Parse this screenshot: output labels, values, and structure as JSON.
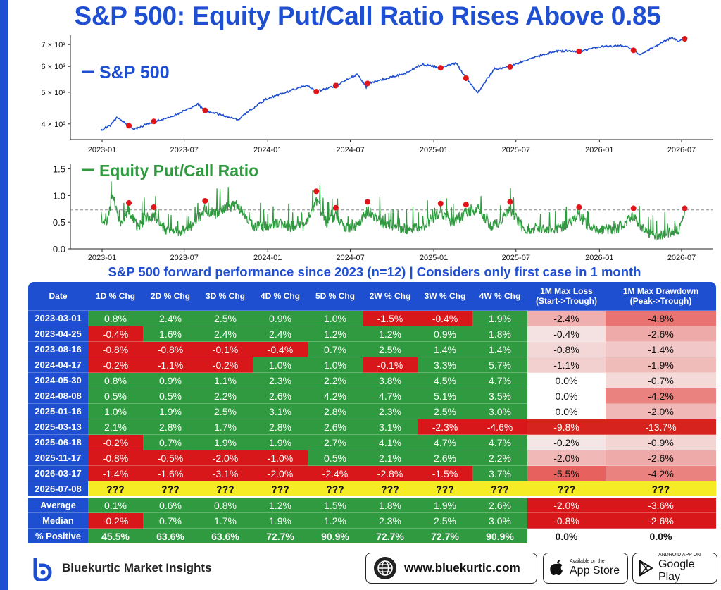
{
  "title": "S&P 500: Equity Put/Call Ratio Rises Above 0.85",
  "colors": {
    "brand": "#1f4fd1",
    "sp500_line": "#1f4fd1",
    "pcr_line": "#2f9a3f",
    "marker": "#e0161b",
    "positive": "#2f9a3f",
    "negative": "#d8171a",
    "current": "#f5ec26"
  },
  "chart_data": [
    {
      "type": "line",
      "series": [
        {
          "name": "S&P 500"
        }
      ],
      "x_tick_labels": [
        "2023-01",
        "2023-07",
        "2024-01",
        "2024-07",
        "2025-01",
        "2025-07",
        "2026-01",
        "2026-07"
      ],
      "y_tick_labels": [
        "4 × 10³",
        "5 × 10³",
        "6 × 10³",
        "7 × 10³"
      ],
      "y_scale": "log",
      "ylim": [
        3600,
        7400
      ],
      "line": [
        [
          "2022-12-30",
          3840
        ],
        [
          "2023-01-20",
          3970
        ],
        [
          "2023-02-02",
          4180
        ],
        [
          "2023-03-01",
          3950
        ],
        [
          "2023-03-13",
          3855
        ],
        [
          "2023-04-25",
          4070
        ],
        [
          "2023-05-31",
          4180
        ],
        [
          "2023-07-31",
          4590
        ],
        [
          "2023-08-16",
          4400
        ],
        [
          "2023-10-27",
          4120
        ],
        [
          "2023-12-29",
          4770
        ],
        [
          "2024-03-28",
          5250
        ],
        [
          "2024-04-17",
          5020
        ],
        [
          "2024-05-30",
          5240
        ],
        [
          "2024-07-16",
          5670
        ],
        [
          "2024-08-05",
          5190
        ],
        [
          "2024-08-08",
          5320
        ],
        [
          "2024-10-31",
          5705
        ],
        [
          "2024-12-06",
          6090
        ],
        [
          "2025-01-16",
          5940
        ],
        [
          "2025-02-19",
          6140
        ],
        [
          "2025-03-13",
          5520
        ],
        [
          "2025-04-08",
          4980
        ],
        [
          "2025-05-15",
          5900
        ],
        [
          "2025-06-18",
          5980
        ],
        [
          "2025-07-31",
          6340
        ],
        [
          "2025-09-30",
          6690
        ],
        [
          "2025-11-17",
          6670
        ],
        [
          "2025-12-31",
          6900
        ],
        [
          "2026-02-25",
          6950
        ],
        [
          "2026-03-17",
          6720
        ],
        [
          "2026-03-31",
          6500
        ],
        [
          "2026-05-15",
          7050
        ],
        [
          "2026-06-10",
          7350
        ],
        [
          "2026-06-24",
          7180
        ],
        [
          "2026-07-08",
          7290
        ]
      ],
      "markers": [
        [
          "2023-03-01",
          3950
        ],
        [
          "2023-04-25",
          4070
        ],
        [
          "2023-08-16",
          4400
        ],
        [
          "2024-04-17",
          5020
        ],
        [
          "2024-05-30",
          5240
        ],
        [
          "2024-08-08",
          5320
        ],
        [
          "2025-01-16",
          5940
        ],
        [
          "2025-03-13",
          5520
        ],
        [
          "2025-06-18",
          5980
        ],
        [
          "2025-11-17",
          6670
        ],
        [
          "2026-03-17",
          6720
        ],
        [
          "2026-07-08",
          7290
        ]
      ]
    },
    {
      "type": "line",
      "series": [
        {
          "name": "Equity Put/Call Ratio"
        }
      ],
      "x_tick_labels": [
        "2023-01",
        "2023-07",
        "2024-01",
        "2024-07",
        "2025-01",
        "2025-07",
        "2026-01",
        "2026-07"
      ],
      "y_tick_labels": [
        "0.0",
        "0.5",
        "1.0",
        "1.5"
      ],
      "ylim": [
        0,
        1.6
      ],
      "threshold": 0.73,
      "line": [
        [
          "2022-12-30",
          0.75
        ],
        [
          "2023-01-10",
          0.62
        ],
        [
          "2023-01-25",
          1.22
        ],
        [
          "2023-02-10",
          0.55
        ],
        [
          "2023-03-01",
          0.86
        ],
        [
          "2023-03-20",
          0.52
        ],
        [
          "2023-04-10",
          0.72
        ],
        [
          "2023-04-25",
          0.78
        ],
        [
          "2023-05-20",
          0.46
        ],
        [
          "2023-06-20",
          0.38
        ],
        [
          "2023-07-20",
          0.55
        ],
        [
          "2023-08-16",
          0.9
        ],
        [
          "2023-09-10",
          0.82
        ],
        [
          "2023-10-05",
          0.95
        ],
        [
          "2023-10-27",
          1.02
        ],
        [
          "2023-11-20",
          0.58
        ],
        [
          "2023-12-20",
          0.5
        ],
        [
          "2024-01-20",
          0.6
        ],
        [
          "2024-02-20",
          0.52
        ],
        [
          "2024-03-20",
          0.55
        ],
        [
          "2024-04-17",
          1.08
        ],
        [
          "2024-05-10",
          0.6
        ],
        [
          "2024-05-30",
          0.77
        ],
        [
          "2024-06-20",
          0.48
        ],
        [
          "2024-07-20",
          0.56
        ],
        [
          "2024-08-08",
          0.88
        ],
        [
          "2024-09-10",
          0.6
        ],
        [
          "2024-10-10",
          0.52
        ],
        [
          "2024-11-10",
          0.44
        ],
        [
          "2024-12-10",
          0.55
        ],
        [
          "2025-01-16",
          0.85
        ],
        [
          "2025-02-10",
          0.6
        ],
        [
          "2025-03-13",
          0.83
        ],
        [
          "2025-04-08",
          0.94
        ],
        [
          "2025-05-10",
          0.5
        ],
        [
          "2025-06-18",
          0.88
        ],
        [
          "2025-07-20",
          0.45
        ],
        [
          "2025-08-20",
          0.5
        ],
        [
          "2025-09-20",
          0.42
        ],
        [
          "2025-10-20",
          0.55
        ],
        [
          "2025-11-17",
          0.78
        ],
        [
          "2025-12-10",
          0.5
        ],
        [
          "2026-01-10",
          0.45
        ],
        [
          "2026-02-10",
          0.48
        ],
        [
          "2026-03-17",
          0.76
        ],
        [
          "2026-04-10",
          0.42
        ],
        [
          "2026-05-10",
          0.28
        ],
        [
          "2026-06-10",
          0.38
        ],
        [
          "2026-06-25",
          0.46
        ],
        [
          "2026-07-08",
          0.76
        ]
      ],
      "markers": [
        [
          "2023-03-01",
          0.86
        ],
        [
          "2023-04-25",
          0.78
        ],
        [
          "2023-08-16",
          0.9
        ],
        [
          "2024-04-17",
          1.08
        ],
        [
          "2024-05-30",
          0.77
        ],
        [
          "2024-08-08",
          0.88
        ],
        [
          "2025-01-16",
          0.85
        ],
        [
          "2025-03-13",
          0.83
        ],
        [
          "2025-06-18",
          0.88
        ],
        [
          "2025-11-17",
          0.78
        ],
        [
          "2026-03-17",
          0.76
        ],
        [
          "2026-07-08",
          0.76
        ]
      ]
    },
    {
      "type": "table",
      "title": "S&P 500 forward performance since 2023 (n=12) | Considers only first case in 1 month",
      "headers": [
        "Date",
        "1D % Chg",
        "2D % Chg",
        "3D % Chg",
        "4D % Chg",
        "5D % Chg",
        "2W % Chg",
        "3W % Chg",
        "4W % Chg",
        "1M Max Loss\n(Start->Trough)",
        "1M Max Drawdown\n(Peak->Trough)"
      ],
      "rows": [
        [
          "2023-03-01",
          "0.8%",
          "2.4%",
          "2.5%",
          "0.9%",
          "1.0%",
          "-1.5%",
          "-0.4%",
          "1.9%",
          "-2.4%",
          "-4.8%"
        ],
        [
          "2023-04-25",
          "-0.4%",
          "1.6%",
          "2.4%",
          "2.4%",
          "1.2%",
          "1.2%",
          "0.9%",
          "1.8%",
          "-0.4%",
          "-2.6%"
        ],
        [
          "2023-08-16",
          "-0.8%",
          "-0.8%",
          "-0.1%",
          "-0.4%",
          "0.7%",
          "2.5%",
          "1.4%",
          "1.4%",
          "-0.8%",
          "-1.4%"
        ],
        [
          "2024-04-17",
          "-0.2%",
          "-1.1%",
          "-0.2%",
          "1.0%",
          "1.0%",
          "-0.1%",
          "3.3%",
          "5.7%",
          "-1.1%",
          "-1.9%"
        ],
        [
          "2024-05-30",
          "0.8%",
          "0.9%",
          "1.1%",
          "2.3%",
          "2.2%",
          "3.8%",
          "4.5%",
          "4.7%",
          "0.0%",
          "-0.7%"
        ],
        [
          "2024-08-08",
          "0.5%",
          "0.5%",
          "2.2%",
          "2.6%",
          "4.2%",
          "4.7%",
          "5.1%",
          "3.5%",
          "0.0%",
          "-4.2%"
        ],
        [
          "2025-01-16",
          "1.0%",
          "1.9%",
          "2.5%",
          "3.1%",
          "2.8%",
          "2.3%",
          "2.5%",
          "3.0%",
          "0.0%",
          "-2.0%"
        ],
        [
          "2025-03-13",
          "2.1%",
          "2.8%",
          "1.7%",
          "2.8%",
          "2.6%",
          "3.1%",
          "-2.3%",
          "-4.6%",
          "-9.8%",
          "-13.7%"
        ],
        [
          "2025-06-18",
          "-0.2%",
          "0.7%",
          "1.9%",
          "1.9%",
          "2.7%",
          "4.1%",
          "4.7%",
          "4.7%",
          "-0.2%",
          "-0.9%"
        ],
        [
          "2025-11-17",
          "-0.8%",
          "-0.5%",
          "-2.0%",
          "-1.0%",
          "0.5%",
          "2.1%",
          "2.6%",
          "2.2%",
          "-2.0%",
          "-2.6%"
        ],
        [
          "2026-03-17",
          "-1.4%",
          "-1.6%",
          "-3.1%",
          "-2.0%",
          "-2.4%",
          "-2.8%",
          "-1.5%",
          "3.7%",
          "-5.5%",
          "-4.2%"
        ],
        [
          "2026-07-08",
          "???",
          "???",
          "???",
          "???",
          "???",
          "???",
          "???",
          "???",
          "???",
          "???"
        ]
      ],
      "summary": [
        [
          "Average",
          "0.1%",
          "0.6%",
          "0.8%",
          "1.2%",
          "1.5%",
          "1.8%",
          "1.9%",
          "2.6%",
          "-2.0%",
          "-3.6%"
        ],
        [
          "Median",
          "-0.2%",
          "0.7%",
          "1.7%",
          "1.9%",
          "1.2%",
          "2.3%",
          "2.5%",
          "3.0%",
          "-0.8%",
          "-2.6%"
        ],
        [
          "% Positive",
          "45.5%",
          "63.6%",
          "63.6%",
          "72.7%",
          "90.9%",
          "72.7%",
          "72.7%",
          "90.9%",
          "0.0%",
          "0.0%"
        ]
      ]
    }
  ],
  "footer": {
    "brand": "Bluekurtic Market Insights",
    "website": "www.bluekurtic.com",
    "app_store_small": "Available on the",
    "app_store_big": "App Store",
    "play_small": "ANDROID APP ON",
    "play_big": "Google Play"
  }
}
